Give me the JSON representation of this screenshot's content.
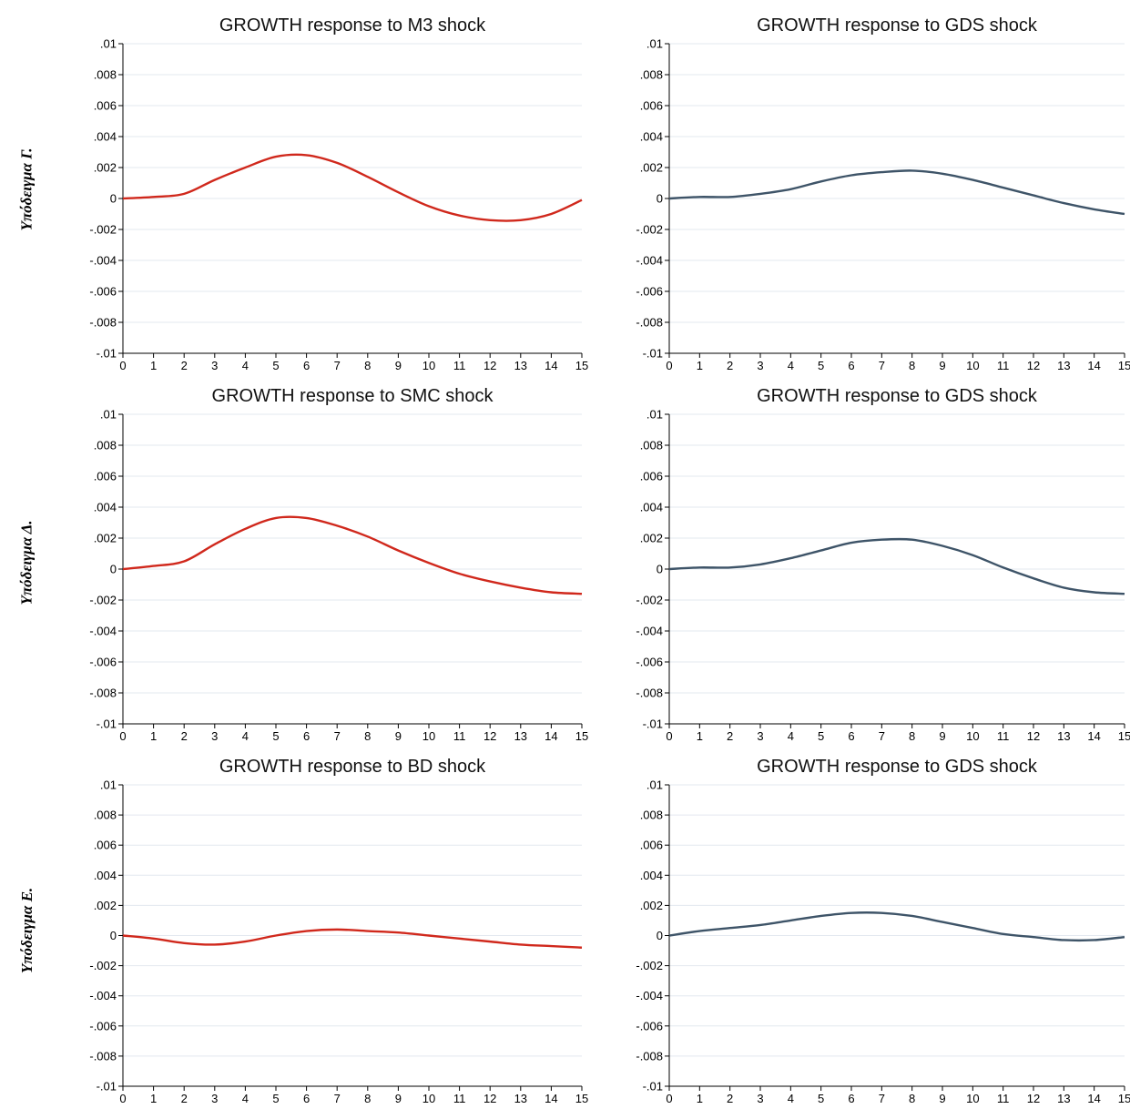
{
  "row_labels": [
    "Υπόδειγμα Γ.",
    "Υπόδειγμα Δ.",
    "Υπόδειγμα Ε."
  ],
  "colors": {
    "red_series": "#d0281c",
    "blue_series": "#3e5468",
    "grid": "#e3e8ef",
    "plot_bg": "#ffffff"
  },
  "chart_data": [
    {
      "type": "line",
      "title": "GROWTH response to M3 shock",
      "x": [
        0,
        1,
        2,
        3,
        4,
        5,
        6,
        7,
        8,
        9,
        10,
        11,
        12,
        13,
        14,
        15
      ],
      "series": [
        {
          "values": [
            0.0,
            0.0001,
            0.0003,
            0.0012,
            0.002,
            0.0027,
            0.0028,
            0.0023,
            0.0014,
            0.0004,
            -0.0005,
            -0.0011,
            -0.0014,
            -0.0014,
            -0.001,
            -0.0001
          ],
          "color": "#d0281c"
        }
      ],
      "xticks": [
        "0",
        "1",
        "2",
        "3",
        "4",
        "5",
        "6",
        "7",
        "8",
        "9",
        "10",
        "11",
        "12",
        "13",
        "14",
        "15"
      ],
      "yticks": [
        ".01",
        ".008",
        ".006",
        ".004",
        ".002",
        "0",
        "-.002",
        "-.004",
        "-.006",
        "-.008",
        "-.01"
      ],
      "ylim": [
        -0.01,
        0.01
      ],
      "xlim": [
        0,
        15
      ],
      "grid": true
    },
    {
      "type": "line",
      "title": "GROWTH response to GDS shock",
      "x": [
        0,
        1,
        2,
        3,
        4,
        5,
        6,
        7,
        8,
        9,
        10,
        11,
        12,
        13,
        14,
        15
      ],
      "series": [
        {
          "values": [
            0.0,
            0.0001,
            0.0001,
            0.0003,
            0.0006,
            0.0011,
            0.0015,
            0.0017,
            0.0018,
            0.0016,
            0.0012,
            0.0007,
            0.0002,
            -0.0003,
            -0.0007,
            -0.001
          ],
          "color": "#3e5468"
        }
      ],
      "xticks": [
        "0",
        "1",
        "2",
        "3",
        "4",
        "5",
        "6",
        "7",
        "8",
        "9",
        "10",
        "11",
        "12",
        "13",
        "14",
        "15"
      ],
      "yticks": [
        ".01",
        ".008",
        ".006",
        ".004",
        ".002",
        "0",
        "-.002",
        "-.004",
        "-.006",
        "-.008",
        "-.01"
      ],
      "ylim": [
        -0.01,
        0.01
      ],
      "xlim": [
        0,
        15
      ],
      "grid": true
    },
    {
      "type": "line",
      "title": "GROWTH response to SMC shock",
      "x": [
        0,
        1,
        2,
        3,
        4,
        5,
        6,
        7,
        8,
        9,
        10,
        11,
        12,
        13,
        14,
        15
      ],
      "series": [
        {
          "values": [
            0.0,
            0.0002,
            0.0005,
            0.0016,
            0.0026,
            0.0033,
            0.0033,
            0.0028,
            0.0021,
            0.0012,
            0.0004,
            -0.0003,
            -0.0008,
            -0.0012,
            -0.0015,
            -0.0016
          ],
          "color": "#d0281c"
        }
      ],
      "xticks": [
        "0",
        "1",
        "2",
        "3",
        "4",
        "5",
        "6",
        "7",
        "8",
        "9",
        "10",
        "11",
        "12",
        "13",
        "14",
        "15"
      ],
      "yticks": [
        ".01",
        ".008",
        ".006",
        ".004",
        ".002",
        "0",
        "-.002",
        "-.004",
        "-.006",
        "-.008",
        "-.01"
      ],
      "ylim": [
        -0.01,
        0.01
      ],
      "xlim": [
        0,
        15
      ],
      "grid": true
    },
    {
      "type": "line",
      "title": "GROWTH response to GDS shock",
      "x": [
        0,
        1,
        2,
        3,
        4,
        5,
        6,
        7,
        8,
        9,
        10,
        11,
        12,
        13,
        14,
        15
      ],
      "series": [
        {
          "values": [
            0.0,
            0.0001,
            0.0001,
            0.0003,
            0.0007,
            0.0012,
            0.0017,
            0.0019,
            0.0019,
            0.0015,
            0.0009,
            0.0001,
            -0.0006,
            -0.0012,
            -0.0015,
            -0.0016
          ],
          "color": "#3e5468"
        }
      ],
      "xticks": [
        "0",
        "1",
        "2",
        "3",
        "4",
        "5",
        "6",
        "7",
        "8",
        "9",
        "10",
        "11",
        "12",
        "13",
        "14",
        "15"
      ],
      "yticks": [
        ".01",
        ".008",
        ".006",
        ".004",
        ".002",
        "0",
        "-.002",
        "-.004",
        "-.006",
        "-.008",
        "-.01"
      ],
      "ylim": [
        -0.01,
        0.01
      ],
      "xlim": [
        0,
        15
      ],
      "grid": true
    },
    {
      "type": "line",
      "title": "GROWTH response to BD shock",
      "x": [
        0,
        1,
        2,
        3,
        4,
        5,
        6,
        7,
        8,
        9,
        10,
        11,
        12,
        13,
        14,
        15
      ],
      "series": [
        {
          "values": [
            0.0,
            -0.0002,
            -0.0005,
            -0.0006,
            -0.0004,
            0.0,
            0.0003,
            0.0004,
            0.0003,
            0.0002,
            0.0,
            -0.0002,
            -0.0004,
            -0.0006,
            -0.0007,
            -0.0008
          ],
          "color": "#d0281c"
        }
      ],
      "xticks": [
        "0",
        "1",
        "2",
        "3",
        "4",
        "5",
        "6",
        "7",
        "8",
        "9",
        "10",
        "11",
        "12",
        "13",
        "14",
        "15"
      ],
      "yticks": [
        ".01",
        ".008",
        ".006",
        ".004",
        ".002",
        "0",
        "-.002",
        "-.004",
        "-.006",
        "-.008",
        "-.01"
      ],
      "ylim": [
        -0.01,
        0.01
      ],
      "xlim": [
        0,
        15
      ],
      "grid": true
    },
    {
      "type": "line",
      "title": "GROWTH response to GDS shock",
      "x": [
        0,
        1,
        2,
        3,
        4,
        5,
        6,
        7,
        8,
        9,
        10,
        11,
        12,
        13,
        14,
        15
      ],
      "series": [
        {
          "values": [
            0.0,
            0.0003,
            0.0005,
            0.0007,
            0.001,
            0.0013,
            0.0015,
            0.0015,
            0.0013,
            0.0009,
            0.0005,
            0.0001,
            -0.0001,
            -0.0003,
            -0.0003,
            -0.0001
          ],
          "color": "#3e5468"
        }
      ],
      "xticks": [
        "0",
        "1",
        "2",
        "3",
        "4",
        "5",
        "6",
        "7",
        "8",
        "9",
        "10",
        "11",
        "12",
        "13",
        "14",
        "15"
      ],
      "yticks": [
        ".01",
        ".008",
        ".006",
        ".004",
        ".002",
        "0",
        "-.002",
        "-.004",
        "-.006",
        "-.008",
        "-.01"
      ],
      "ylim": [
        -0.01,
        0.01
      ],
      "xlim": [
        0,
        15
      ],
      "grid": true
    }
  ]
}
